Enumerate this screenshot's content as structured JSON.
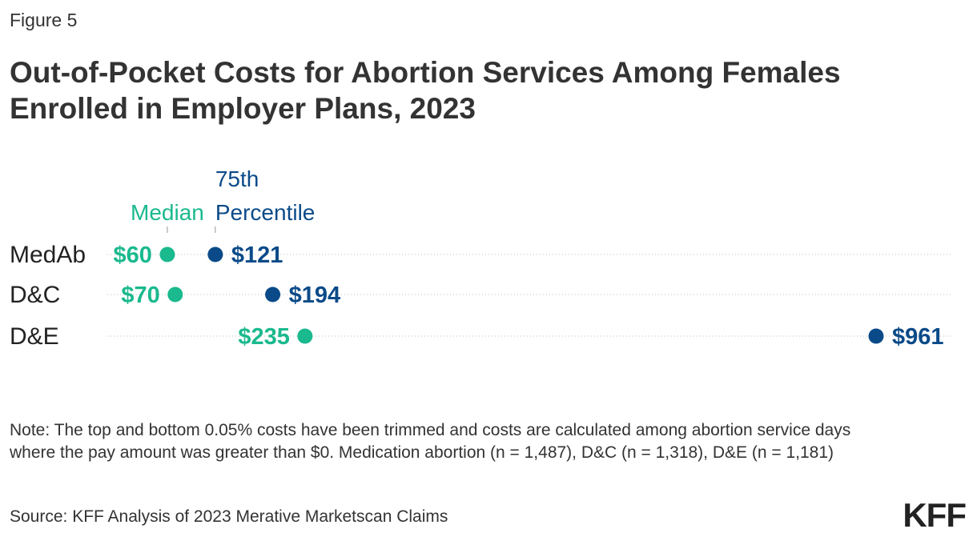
{
  "figure_label": "Figure 5",
  "title": "Out-of-Pocket Costs for Abortion Services Among Females Enrolled in Employer Plans, 2023",
  "note": "Note: The top and bottom 0.05% costs have been trimmed and costs are calculated among abortion service days where the pay amount was greater than $0. Medication abortion (n = 1,487), D&C (n = 1,318), D&E (n = 1,181)",
  "source": "Source: KFF Analysis of 2023 Merative Marketscan Claims",
  "logo": "KFF",
  "colors": {
    "median": "#1ab98e",
    "p75": "#0b4a88",
    "label": "#222222",
    "dots": "#bdbdbd"
  },
  "chart_data": {
    "type": "dumbbell",
    "legend": {
      "median": "Median",
      "p75": [
        "75th",
        "Percentile"
      ]
    },
    "categories": [
      "MedAb",
      "D&C",
      "D&E"
    ],
    "series": [
      {
        "name": "Median",
        "values": [
          60,
          70,
          235
        ],
        "labels": [
          "$60",
          "$70",
          "$235"
        ]
      },
      {
        "name": "75th Percentile",
        "values": [
          121,
          194,
          961
        ],
        "labels": [
          "$121",
          "$194",
          "$961"
        ]
      }
    ],
    "xlim": [
      0,
      961
    ],
    "grid": false
  }
}
